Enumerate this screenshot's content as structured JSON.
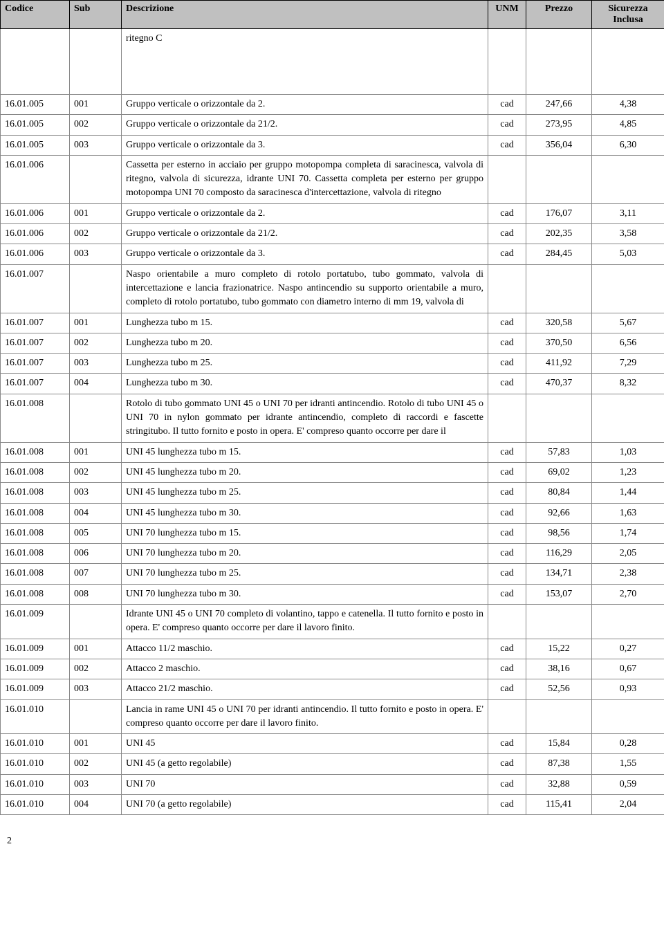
{
  "headers": {
    "codice": "Codice",
    "sub": "Sub",
    "descrizione": "Descrizione",
    "unm": "UNM",
    "prezzo": "Prezzo",
    "sicurezza": "Sicurezza Inclusa"
  },
  "rows": [
    {
      "codice": "",
      "sub": "",
      "desc": "ritegno C",
      "unm": "",
      "prezzo": "",
      "sic": "",
      "tall": true,
      "justify": false
    },
    {
      "codice": "16.01.005",
      "sub": "001",
      "desc": "Gruppo verticale o orizzontale da 2.",
      "unm": "cad",
      "prezzo": "247,66",
      "sic": "4,38"
    },
    {
      "codice": "16.01.005",
      "sub": "002",
      "desc": "Gruppo verticale o orizzontale da 21/2.",
      "unm": "cad",
      "prezzo": "273,95",
      "sic": "4,85"
    },
    {
      "codice": "16.01.005",
      "sub": "003",
      "desc": "Gruppo verticale o orizzontale da 3.",
      "unm": "cad",
      "prezzo": "356,04",
      "sic": "6,30"
    },
    {
      "codice": "16.01.006",
      "sub": "",
      "desc": "Cassetta per esterno in acciaio per gruppo motopompa completa di saracinesca, valvola di ritegno, valvola di sicurezza, idrante UNI 70. Cassetta completa per esterno per gruppo motopompa UNI 70 composto da saracinesca d'intercettazione, valvola di ritegno",
      "unm": "",
      "prezzo": "",
      "sic": "",
      "justify": true
    },
    {
      "codice": "16.01.006",
      "sub": "001",
      "desc": "Gruppo verticale o orizzontale da 2.",
      "unm": "cad",
      "prezzo": "176,07",
      "sic": "3,11"
    },
    {
      "codice": "16.01.006",
      "sub": "002",
      "desc": "Gruppo verticale o orizzontale da 21/2.",
      "unm": "cad",
      "prezzo": "202,35",
      "sic": "3,58"
    },
    {
      "codice": "16.01.006",
      "sub": "003",
      "desc": "Gruppo verticale o orizzontale da 3.",
      "unm": "cad",
      "prezzo": "284,45",
      "sic": "5,03"
    },
    {
      "codice": "16.01.007",
      "sub": "",
      "desc": "Naspo orientabile a muro completo di rotolo portatubo, tubo gommato, valvola di intercettazione e lancia frazionatrice. Naspo antincendio su supporto orientabile a muro, completo di rotolo portatubo, tubo gommato con diametro interno di mm 19, valvola di",
      "unm": "",
      "prezzo": "",
      "sic": "",
      "justify": true
    },
    {
      "codice": "16.01.007",
      "sub": "001",
      "desc": "Lunghezza tubo m 15.",
      "unm": "cad",
      "prezzo": "320,58",
      "sic": "5,67"
    },
    {
      "codice": "16.01.007",
      "sub": "002",
      "desc": "Lunghezza tubo m 20.",
      "unm": "cad",
      "prezzo": "370,50",
      "sic": "6,56"
    },
    {
      "codice": "16.01.007",
      "sub": "003",
      "desc": "Lunghezza tubo m 25.",
      "unm": "cad",
      "prezzo": "411,92",
      "sic": "7,29"
    },
    {
      "codice": "16.01.007",
      "sub": "004",
      "desc": "Lunghezza tubo m 30.",
      "unm": "cad",
      "prezzo": "470,37",
      "sic": "8,32"
    },
    {
      "codice": "16.01.008",
      "sub": "",
      "desc": "Rotolo di tubo gommato UNI 45 o UNI 70 per idranti antincendio. Rotolo di tubo UNI 45 o UNI 70 in nylon gommato per idrante antincendio, completo di raccordi e fascette stringitubo. Il tutto fornito e posto in opera. E' compreso quanto occorre per dare il",
      "unm": "",
      "prezzo": "",
      "sic": "",
      "justify": true
    },
    {
      "codice": "16.01.008",
      "sub": "001",
      "desc": "UNI 45 lunghezza tubo m 15.",
      "unm": "cad",
      "prezzo": "57,83",
      "sic": "1,03"
    },
    {
      "codice": "16.01.008",
      "sub": "002",
      "desc": "UNI 45 lunghezza tubo m 20.",
      "unm": "cad",
      "prezzo": "69,02",
      "sic": "1,23"
    },
    {
      "codice": "16.01.008",
      "sub": "003",
      "desc": "UNI 45 lunghezza tubo m 25.",
      "unm": "cad",
      "prezzo": "80,84",
      "sic": "1,44"
    },
    {
      "codice": "16.01.008",
      "sub": "004",
      "desc": "UNI 45 lunghezza tubo m 30.",
      "unm": "cad",
      "prezzo": "92,66",
      "sic": "1,63"
    },
    {
      "codice": "16.01.008",
      "sub": "005",
      "desc": "UNI 70 lunghezza tubo m 15.",
      "unm": "cad",
      "prezzo": "98,56",
      "sic": "1,74"
    },
    {
      "codice": "16.01.008",
      "sub": "006",
      "desc": "UNI 70 lunghezza tubo m 20.",
      "unm": "cad",
      "prezzo": "116,29",
      "sic": "2,05"
    },
    {
      "codice": "16.01.008",
      "sub": "007",
      "desc": "UNI 70 lunghezza tubo m 25.",
      "unm": "cad",
      "prezzo": "134,71",
      "sic": "2,38"
    },
    {
      "codice": "16.01.008",
      "sub": "008",
      "desc": "UNI 70 lunghezza tubo m 30.",
      "unm": "cad",
      "prezzo": "153,07",
      "sic": "2,70"
    },
    {
      "codice": "16.01.009",
      "sub": "",
      "desc": "Idrante UNI 45 o UNI 70 completo di volantino, tappo e catenella. Il tutto fornito e posto in opera. E' compreso quanto occorre per dare il lavoro finito.",
      "unm": "",
      "prezzo": "",
      "sic": "",
      "justify": true
    },
    {
      "codice": "16.01.009",
      "sub": "001",
      "desc": "Attacco 11/2 maschio.",
      "unm": "cad",
      "prezzo": "15,22",
      "sic": "0,27"
    },
    {
      "codice": "16.01.009",
      "sub": "002",
      "desc": "Attacco 2 maschio.",
      "unm": "cad",
      "prezzo": "38,16",
      "sic": "0,67"
    },
    {
      "codice": "16.01.009",
      "sub": "003",
      "desc": "Attacco 21/2 maschio.",
      "unm": "cad",
      "prezzo": "52,56",
      "sic": "0,93"
    },
    {
      "codice": "16.01.010",
      "sub": "",
      "desc": "Lancia in rame UNI 45 o UNI 70 per idranti antincendio. Il tutto fornito e posto in opera. E' compreso quanto occorre per dare il lavoro finito.",
      "unm": "",
      "prezzo": "",
      "sic": "",
      "justify": true
    },
    {
      "codice": "16.01.010",
      "sub": "001",
      "desc": "UNI 45",
      "unm": "cad",
      "prezzo": "15,84",
      "sic": "0,28"
    },
    {
      "codice": "16.01.010",
      "sub": "002",
      "desc": "UNI 45 (a getto regolabile)",
      "unm": "cad",
      "prezzo": "87,38",
      "sic": "1,55"
    },
    {
      "codice": "16.01.010",
      "sub": "003",
      "desc": "UNI 70",
      "unm": "cad",
      "prezzo": "32,88",
      "sic": "0,59"
    },
    {
      "codice": "16.01.010",
      "sub": "004",
      "desc": "UNI 70 (a getto regolabile)",
      "unm": "cad",
      "prezzo": "115,41",
      "sic": "2,04"
    }
  ],
  "pageNumber": "2"
}
